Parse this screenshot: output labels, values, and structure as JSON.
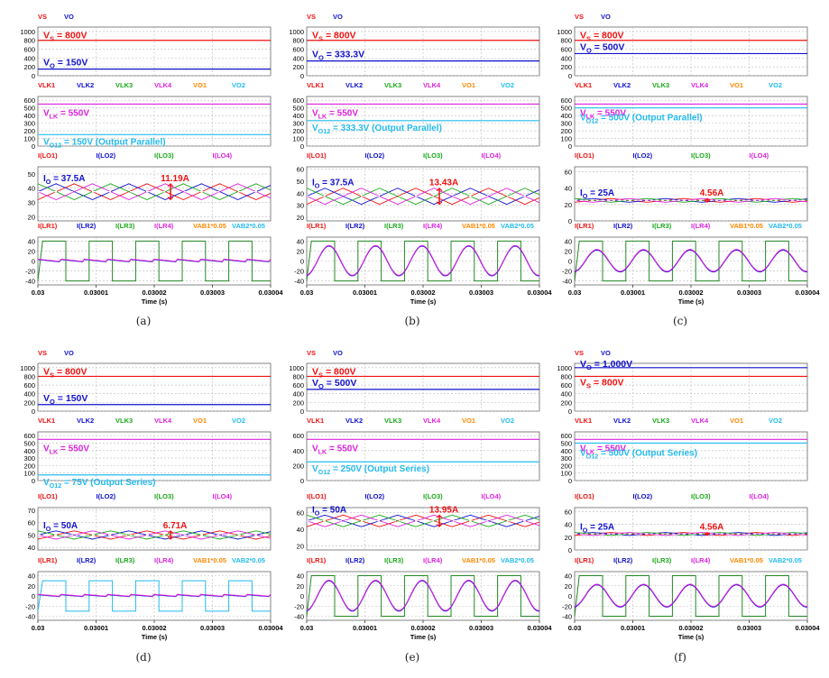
{
  "colors": {
    "red": "#ee1111",
    "blue": "#1111cc",
    "green": "#1aa81a",
    "magenta": "#dd22dd",
    "orange": "#ff8800",
    "cyan": "#22bbee",
    "darkgreen": "#228822"
  },
  "time_axis": {
    "label": "Time (s)",
    "ticks": [
      "0.03",
      "0.03001",
      "0.03002",
      "0.03003",
      "0.03004"
    ]
  },
  "legends": {
    "p1": [
      {
        "text": "VS",
        "color": "red"
      },
      {
        "text": "VO",
        "color": "blue"
      }
    ],
    "p2": [
      {
        "text": "VLK1",
        "color": "red"
      },
      {
        "text": "VLK2",
        "color": "blue"
      },
      {
        "text": "VLK3",
        "color": "green"
      },
      {
        "text": "VLK4",
        "color": "magenta"
      },
      {
        "text": "VO1",
        "color": "orange"
      },
      {
        "text": "VO2",
        "color": "cyan"
      }
    ],
    "p3": [
      {
        "text": "I(LO1)",
        "color": "red"
      },
      {
        "text": "I(LO2)",
        "color": "blue"
      },
      {
        "text": "I(LO3)",
        "color": "green"
      },
      {
        "text": "I(LO4)",
        "color": "magenta"
      }
    ],
    "p4": [
      {
        "text": "I(LR1)",
        "color": "red"
      },
      {
        "text": "I(LR2)",
        "color": "blue"
      },
      {
        "text": "I(LR3)",
        "color": "green"
      },
      {
        "text": "I(LR4)",
        "color": "magenta"
      },
      {
        "text": "VAB1*0.05",
        "color": "orange"
      },
      {
        "text": "VAB2*0.05",
        "color": "cyan"
      }
    ]
  },
  "chart_data": [
    {
      "caption": "(a)",
      "type": "line",
      "voltage_panel": {
        "yticks": [
          0,
          200,
          400,
          600,
          800,
          1000
        ],
        "ylim": [
          0,
          1100
        ],
        "vs": 800,
        "vo": 150,
        "labels": [
          {
            "text": "V_S = 800V",
            "color": "red"
          },
          {
            "text": "V_O = 150V",
            "color": "blue"
          }
        ]
      },
      "vlk_panel": {
        "yticks": [
          0,
          100,
          200,
          300,
          400,
          500,
          600
        ],
        "ylim": [
          0,
          650
        ],
        "vlk": 550,
        "vo12": 150,
        "labels": [
          {
            "text": "V_LK = 550V",
            "color": "magenta"
          },
          {
            "text": "V_O12 = 150V (Output Parallel)",
            "color": "cyan"
          }
        ]
      },
      "lo_panel": {
        "yticks": [
          20,
          30,
          40,
          50
        ],
        "ylim": [
          17,
          55
        ],
        "avg": 37.5,
        "ripple": 11.19,
        "labels": [
          {
            "text": "I_O = 37.5A",
            "color": "blue"
          }
        ],
        "ripple_label": "11.19A"
      },
      "lr_panel": {
        "yticks": [
          -40,
          -20,
          0,
          20,
          40
        ],
        "ylim": [
          -48,
          48
        ],
        "sq_amp": 40,
        "sq_color": "darkgreen",
        "i_amp": 10,
        "i_shape": "flat"
      }
    },
    {
      "caption": "(b)",
      "type": "line",
      "voltage_panel": {
        "yticks": [
          0,
          200,
          400,
          600,
          800,
          1000
        ],
        "ylim": [
          0,
          1100
        ],
        "vs": 800,
        "vo": 333.3,
        "labels": [
          {
            "text": "V_S = 800V",
            "color": "red"
          },
          {
            "text": "V_O = 333.3V",
            "color": "blue"
          }
        ]
      },
      "vlk_panel": {
        "yticks": [
          0,
          100,
          200,
          300,
          400,
          500,
          600
        ],
        "ylim": [
          0,
          650
        ],
        "vlk": 550,
        "vo12": 333.3,
        "labels": [
          {
            "text": "V_LK = 550V",
            "color": "magenta"
          },
          {
            "text": "V_O12 = 333.3V (Output Parallel)",
            "color": "cyan"
          }
        ]
      },
      "lo_panel": {
        "yticks": [
          20,
          30,
          40,
          50,
          60
        ],
        "ylim": [
          17,
          62
        ],
        "avg": 37.5,
        "ripple": 13.43,
        "labels": [
          {
            "text": "I_O = 37.5A",
            "color": "blue"
          }
        ],
        "ripple_label": "13.43A"
      },
      "lr_panel": {
        "yticks": [
          -40,
          -20,
          0,
          20,
          40
        ],
        "ylim": [
          -48,
          48
        ],
        "sq_amp": 40,
        "sq_color": "darkgreen",
        "i_amp": 30,
        "i_shape": "sine"
      }
    },
    {
      "caption": "(c)",
      "type": "line",
      "voltage_panel": {
        "yticks": [
          0,
          200,
          400,
          600,
          800,
          1000
        ],
        "ylim": [
          0,
          1100
        ],
        "vs": 800,
        "vo": 500,
        "labels": [
          {
            "text": "V_S = 800V",
            "color": "red"
          },
          {
            "text": "V_O = 500V",
            "color": "blue"
          }
        ]
      },
      "vlk_panel": {
        "yticks": [
          0,
          100,
          200,
          300,
          400,
          500,
          600
        ],
        "ylim": [
          0,
          650
        ],
        "vlk": 550,
        "vo12": 500,
        "labels": [
          {
            "text": "V_LK = 550V",
            "color": "magenta"
          },
          {
            "text": "V_O12 = 500V (Output Parallel)",
            "color": "cyan"
          }
        ]
      },
      "lo_panel": {
        "yticks": [
          0,
          20,
          40,
          60
        ],
        "ylim": [
          0,
          66
        ],
        "avg": 25,
        "ripple": 4.56,
        "labels": [
          {
            "text": "I_O = 25A",
            "color": "blue"
          }
        ],
        "ripple_label": "4.56A"
      },
      "lr_panel": {
        "yticks": [
          -40,
          -20,
          0,
          20,
          40
        ],
        "ylim": [
          -48,
          48
        ],
        "sq_amp": 40,
        "sq_color": "darkgreen",
        "i_amp": 22,
        "i_shape": "sine"
      }
    },
    {
      "caption": "(d)",
      "type": "line",
      "voltage_panel": {
        "yticks": [
          0,
          200,
          400,
          600,
          800,
          1000
        ],
        "ylim": [
          0,
          1100
        ],
        "vs": 800,
        "vo": 150,
        "labels": [
          {
            "text": "V_S = 800V",
            "color": "red"
          },
          {
            "text": "V_O = 150V",
            "color": "blue"
          }
        ]
      },
      "vlk_panel": {
        "yticks": [
          0,
          100,
          200,
          300,
          400,
          500,
          600
        ],
        "ylim": [
          0,
          650
        ],
        "vlk": 550,
        "vo12": 75,
        "labels": [
          {
            "text": "V_LK = 550V",
            "color": "magenta"
          },
          {
            "text": "V_O12 = 75V (Output Series)",
            "color": "cyan"
          }
        ]
      },
      "lo_panel": {
        "yticks": [
          40,
          50,
          60,
          70
        ],
        "ylim": [
          38,
          72
        ],
        "avg": 50,
        "ripple": 6.71,
        "labels": [
          {
            "text": "I_O = 50A",
            "color": "blue"
          }
        ],
        "ripple_label": "6.71A"
      },
      "lr_panel": {
        "yticks": [
          -40,
          -20,
          0,
          20,
          40
        ],
        "ylim": [
          -48,
          48
        ],
        "sq_amp": 30,
        "sq_color": "cyan",
        "i_amp": 8,
        "i_shape": "flat"
      }
    },
    {
      "caption": "(e)",
      "type": "line",
      "voltage_panel": {
        "yticks": [
          0,
          200,
          400,
          600,
          800,
          1000
        ],
        "ylim": [
          0,
          1100
        ],
        "vs": 800,
        "vo": 500,
        "labels": [
          {
            "text": "V_S = 800V",
            "color": "red"
          },
          {
            "text": "V_O = 500V",
            "color": "blue"
          }
        ]
      },
      "vlk_panel": {
        "yticks": [
          0,
          200,
          400,
          600
        ],
        "ylim": [
          0,
          650
        ],
        "vlk": 550,
        "vo12": 250,
        "labels": [
          {
            "text": "V_LK = 550V",
            "color": "magenta"
          },
          {
            "text": "V_O12 = 250V (Output Series)",
            "color": "cyan"
          }
        ]
      },
      "lo_panel": {
        "yticks": [
          20,
          40,
          60
        ],
        "ylim": [
          15,
          66
        ],
        "avg": 50,
        "ripple": 13.95,
        "labels": [
          {
            "text": "I_O = 50A",
            "color": "blue"
          }
        ],
        "ripple_label": "13.95A"
      },
      "lr_panel": {
        "yticks": [
          -40,
          -20,
          0,
          20,
          40
        ],
        "ylim": [
          -48,
          48
        ],
        "sq_amp": 40,
        "sq_color": "darkgreen",
        "i_amp": 30,
        "i_shape": "sine"
      }
    },
    {
      "caption": "(f)",
      "type": "line",
      "voltage_panel": {
        "yticks": [
          0,
          200,
          400,
          600,
          800,
          1000
        ],
        "ylim": [
          0,
          1100
        ],
        "vs": 800,
        "vo": 1000,
        "labels": [
          {
            "text": "V_O = 1,000V",
            "color": "blue"
          },
          {
            "text": "V_S = 800V",
            "color": "red"
          }
        ]
      },
      "vlk_panel": {
        "yticks": [
          0,
          100,
          200,
          300,
          400,
          500,
          600
        ],
        "ylim": [
          0,
          650
        ],
        "vlk": 550,
        "vo12": 500,
        "labels": [
          {
            "text": "V_LK = 550V",
            "color": "magenta"
          },
          {
            "text": "V_O12 = 500V (Output Series)",
            "color": "cyan"
          }
        ]
      },
      "lo_panel": {
        "yticks": [
          0,
          20,
          40,
          60
        ],
        "ylim": [
          0,
          66
        ],
        "avg": 25,
        "ripple": 4.56,
        "labels": [
          {
            "text": "I_O = 25A",
            "color": "blue"
          }
        ],
        "ripple_label": "4.56A"
      },
      "lr_panel": {
        "yticks": [
          -40,
          -20,
          0,
          20,
          40
        ],
        "ylim": [
          -48,
          48
        ],
        "sq_amp": 40,
        "sq_color": "darkgreen",
        "i_amp": 22,
        "i_shape": "sine"
      }
    }
  ]
}
